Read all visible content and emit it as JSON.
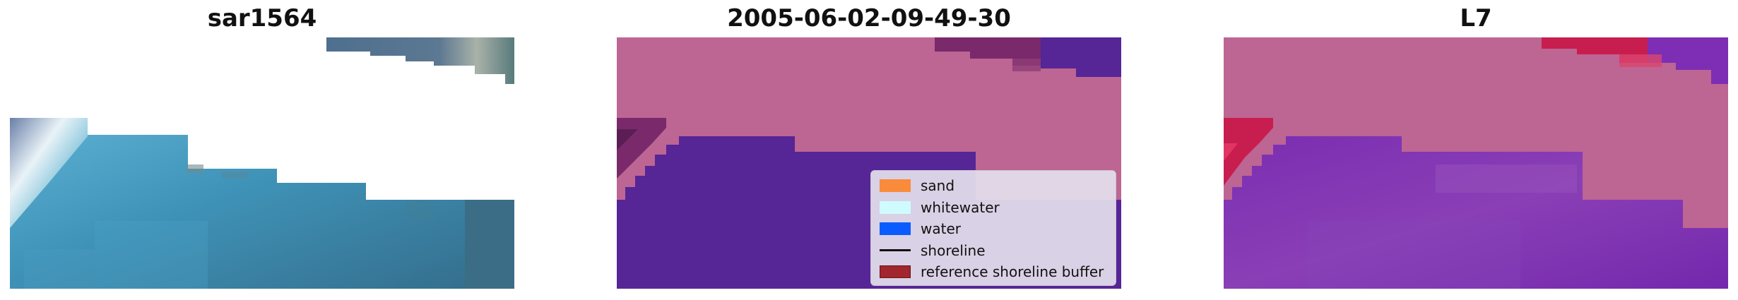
{
  "panels": [
    {
      "title": "sar1564"
    },
    {
      "title": "2005-06-02-09-49-30"
    },
    {
      "title": "L7"
    }
  ],
  "legend": {
    "items": [
      {
        "label": "sand",
        "color": "#f98b3a",
        "kind": "patch"
      },
      {
        "label": "whitewater",
        "color": "#cffbff",
        "kind": "patch"
      },
      {
        "label": "water",
        "color": "#0b5cff",
        "kind": "patch"
      },
      {
        "label": "shoreline",
        "color": "#111111",
        "kind": "line"
      },
      {
        "label": "reference shoreline buffer",
        "color": "#a1262e",
        "kind": "patch"
      }
    ]
  },
  "colors": {
    "classified_land": "#bd6593",
    "classified_water": "#562596",
    "mndwi_high": "#c81e4f",
    "mndwi_low": "#6e1eaa",
    "rgb_sea": "#3c8db0",
    "rgb_cloud_edge": "#4a6a86"
  }
}
